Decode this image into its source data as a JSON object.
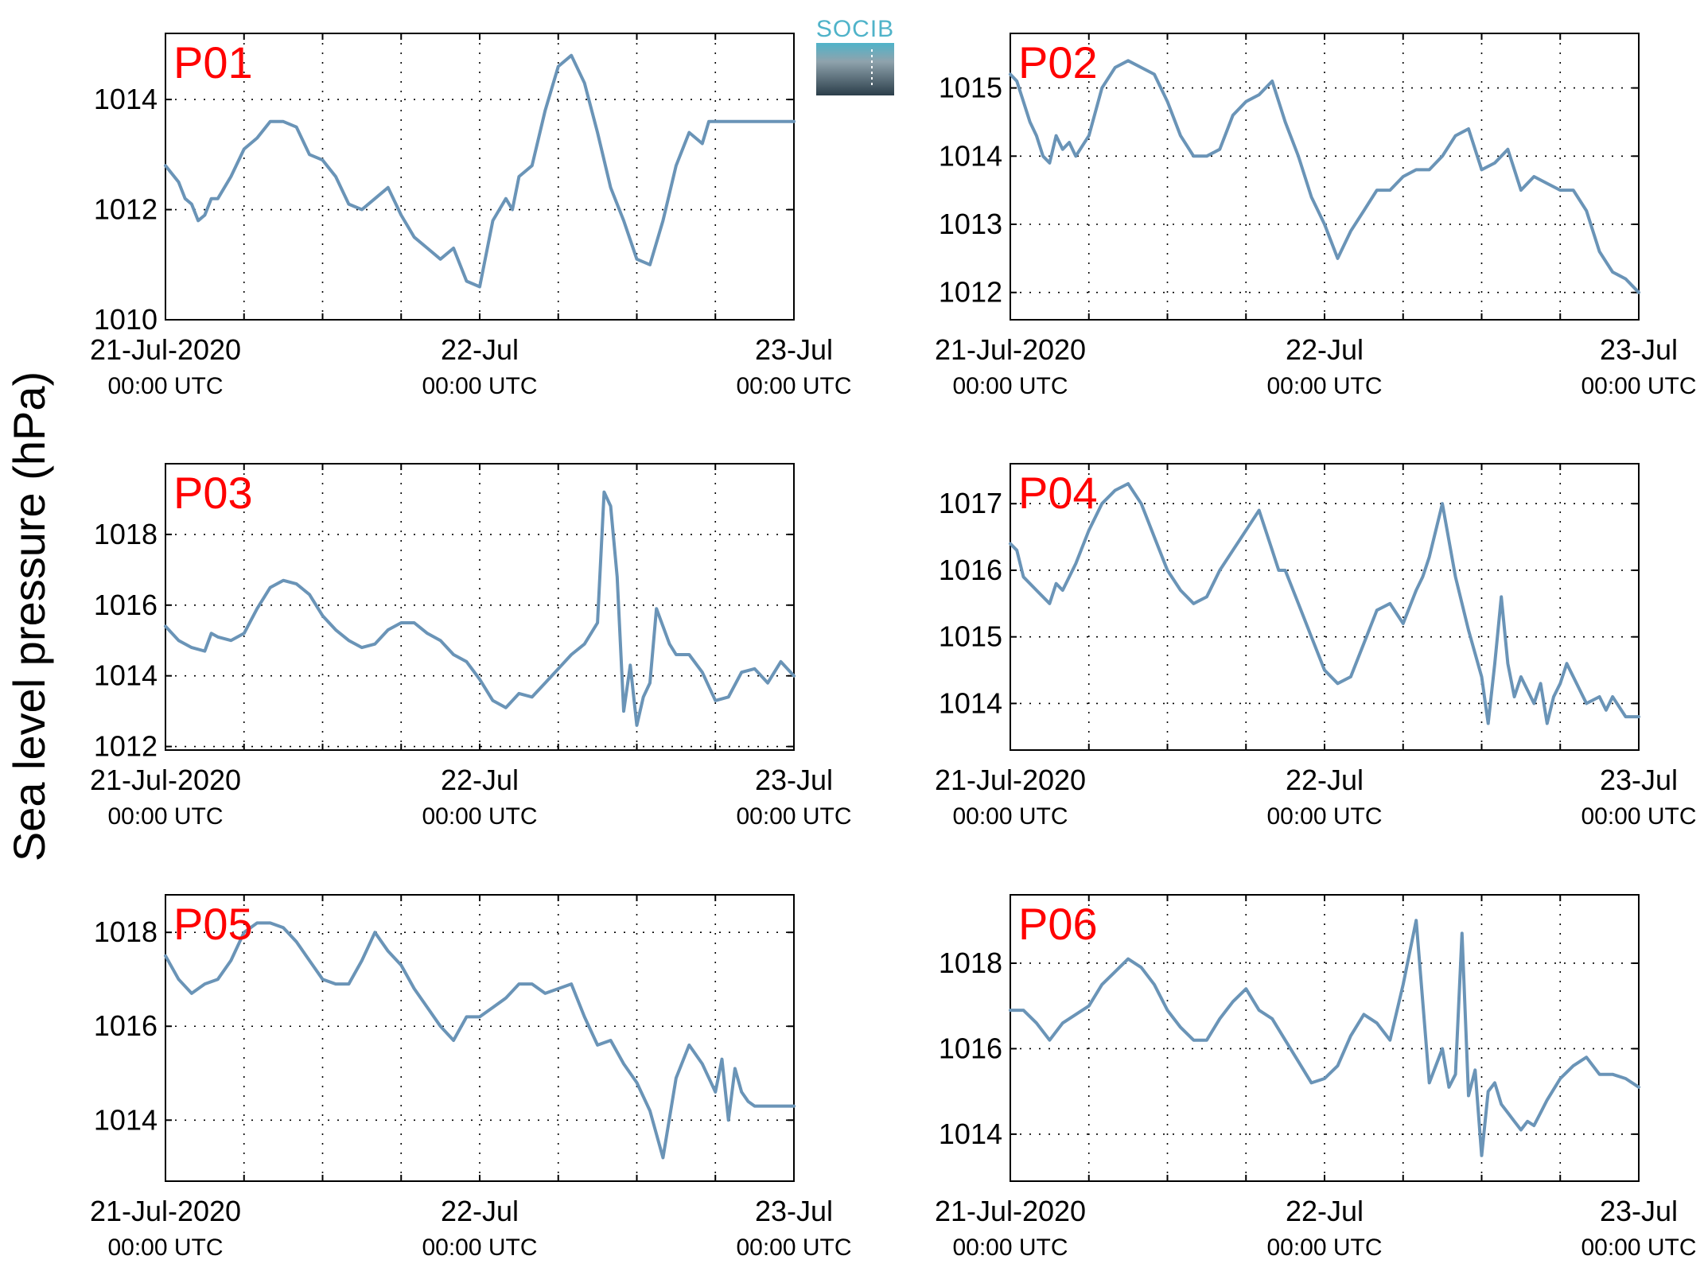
{
  "figure": {
    "ylabel": "Sea level pressure (hPa)",
    "logo_text": "SOCIB",
    "line_color": "#6a94b7",
    "label_color": "#ff0000"
  },
  "chart_data": [
    {
      "type": "line",
      "name": "P01",
      "ylim": [
        1010,
        1015.2
      ],
      "yticks": [
        1010,
        1012,
        1014
      ],
      "xlim": [
        0,
        48
      ],
      "grid": true,
      "xticks": [
        {
          "t": 0,
          "date": "21-Jul-2020",
          "time": "00:00 UTC"
        },
        {
          "t": 24,
          "date": "22-Jul",
          "time": "00:00 UTC"
        },
        {
          "t": 48,
          "date": "23-Jul",
          "time": "00:00 UTC"
        }
      ],
      "series": [
        {
          "x": [
            0,
            1,
            1.5,
            2,
            2.5,
            3,
            3.5,
            4,
            5,
            6,
            7,
            8,
            9,
            10,
            11,
            12,
            13,
            14,
            15,
            16,
            17,
            18,
            19,
            20,
            21,
            22,
            23,
            24,
            25,
            26,
            26.5,
            27,
            27.5,
            28,
            29,
            30,
            31,
            32,
            33,
            34,
            35,
            36,
            37,
            38,
            39,
            40,
            41,
            41.5,
            42,
            43,
            44,
            45,
            46,
            47,
            48
          ],
          "y": [
            1012.8,
            1012.5,
            1012.2,
            1012.1,
            1011.8,
            1011.9,
            1012.2,
            1012.2,
            1012.6,
            1013.1,
            1013.3,
            1013.6,
            1013.6,
            1013.5,
            1013.0,
            1012.9,
            1012.6,
            1012.1,
            1012.0,
            1012.2,
            1012.4,
            1011.9,
            1011.5,
            1011.3,
            1011.1,
            1011.3,
            1010.7,
            1010.6,
            1011.8,
            1012.2,
            1012.0,
            1012.6,
            1012.7,
            1012.8,
            1013.8,
            1014.6,
            1014.8,
            1014.3,
            1013.4,
            1012.4,
            1011.8,
            1011.1,
            1011.0,
            1011.8,
            1012.8,
            1013.4,
            1013.2,
            1013.6,
            1013.6,
            1013.6,
            1013.6,
            1013.6,
            1013.6,
            1013.6,
            1013.6
          ]
        }
      ]
    },
    {
      "type": "line",
      "name": "P02",
      "ylim": [
        1011.6,
        1015.8
      ],
      "yticks": [
        1012,
        1013,
        1014,
        1015
      ],
      "xlim": [
        0,
        48
      ],
      "grid": true,
      "xticks": [
        {
          "t": 0,
          "date": "21-Jul-2020",
          "time": "00:00 UTC"
        },
        {
          "t": 24,
          "date": "22-Jul",
          "time": "00:00 UTC"
        },
        {
          "t": 48,
          "date": "23-Jul",
          "time": "00:00 UTC"
        }
      ],
      "series": [
        {
          "x": [
            0,
            0.5,
            1,
            1.5,
            2,
            2.5,
            3,
            3.5,
            4,
            4.5,
            5,
            6,
            7,
            8,
            9,
            10,
            11,
            12,
            13,
            14,
            15,
            16,
            17,
            18,
            19,
            20,
            20.5,
            21,
            22,
            23,
            24,
            25,
            26,
            27,
            28,
            29,
            30,
            31,
            32,
            33,
            34,
            35,
            36,
            37,
            38,
            39,
            40,
            41,
            42,
            43,
            44,
            45,
            46,
            47,
            48
          ],
          "y": [
            1015.2,
            1015.1,
            1014.8,
            1014.5,
            1014.3,
            1014.0,
            1013.9,
            1014.3,
            1014.1,
            1014.2,
            1014.0,
            1014.3,
            1015.0,
            1015.3,
            1015.4,
            1015.3,
            1015.2,
            1014.8,
            1014.3,
            1014.0,
            1014.0,
            1014.1,
            1014.6,
            1014.8,
            1014.9,
            1015.1,
            1014.8,
            1014.5,
            1014.0,
            1013.4,
            1013.0,
            1012.5,
            1012.9,
            1013.2,
            1013.5,
            1013.5,
            1013.7,
            1013.8,
            1013.8,
            1014.0,
            1014.3,
            1014.4,
            1013.8,
            1013.9,
            1014.1,
            1013.5,
            1013.7,
            1013.6,
            1013.5,
            1013.5,
            1013.2,
            1012.6,
            1012.3,
            1012.2,
            1012.0
          ]
        }
      ]
    },
    {
      "type": "line",
      "name": "P03",
      "ylim": [
        1011.9,
        1020
      ],
      "yticks": [
        1012,
        1014,
        1016,
        1018
      ],
      "xlim": [
        0,
        48
      ],
      "grid": true,
      "xticks": [
        {
          "t": 0,
          "date": "21-Jul-2020",
          "time": "00:00 UTC"
        },
        {
          "t": 24,
          "date": "22-Jul",
          "time": "00:00 UTC"
        },
        {
          "t": 48,
          "date": "23-Jul",
          "time": "00:00 UTC"
        }
      ],
      "series": [
        {
          "x": [
            0,
            1,
            2,
            3,
            3.5,
            4,
            5,
            6,
            7,
            8,
            9,
            10,
            11,
            12,
            13,
            14,
            15,
            16,
            17,
            18,
            19,
            20,
            21,
            22,
            23,
            24,
            25,
            26,
            27,
            28,
            29,
            30,
            31,
            32,
            33,
            33.5,
            34,
            34.5,
            35,
            35.5,
            36,
            36.5,
            37,
            37.5,
            38,
            38.5,
            39,
            40,
            41,
            42,
            43,
            44,
            45,
            46,
            47,
            48
          ],
          "y": [
            1015.4,
            1015.0,
            1014.8,
            1014.7,
            1015.2,
            1015.1,
            1015.0,
            1015.2,
            1015.9,
            1016.5,
            1016.7,
            1016.6,
            1016.3,
            1015.7,
            1015.3,
            1015.0,
            1014.8,
            1014.9,
            1015.3,
            1015.5,
            1015.5,
            1015.2,
            1015.0,
            1014.6,
            1014.4,
            1013.9,
            1013.3,
            1013.1,
            1013.5,
            1013.4,
            1013.8,
            1014.2,
            1014.6,
            1014.9,
            1015.5,
            1019.2,
            1018.8,
            1016.8,
            1013.0,
            1014.3,
            1012.6,
            1013.4,
            1013.8,
            1015.9,
            1015.4,
            1014.9,
            1014.6,
            1014.6,
            1014.1,
            1013.3,
            1013.4,
            1014.1,
            1014.2,
            1013.8,
            1014.4,
            1014.0
          ]
        }
      ]
    },
    {
      "type": "line",
      "name": "P04",
      "ylim": [
        1013.3,
        1017.6
      ],
      "yticks": [
        1014,
        1015,
        1016,
        1017
      ],
      "xlim": [
        0,
        48
      ],
      "grid": true,
      "xticks": [
        {
          "t": 0,
          "date": "21-Jul-2020",
          "time": "00:00 UTC"
        },
        {
          "t": 24,
          "date": "22-Jul",
          "time": "00:00 UTC"
        },
        {
          "t": 48,
          "date": "23-Jul",
          "time": "00:00 UTC"
        }
      ],
      "series": [
        {
          "x": [
            0,
            0.5,
            1,
            2,
            3,
            3.5,
            4,
            5,
            6,
            7,
            8,
            9,
            10,
            11,
            12,
            13,
            14,
            15,
            16,
            17,
            18,
            19,
            20,
            20.5,
            21,
            22,
            23,
            24,
            25,
            26,
            27,
            28,
            29,
            30,
            31,
            31.5,
            32,
            33,
            34,
            35,
            36,
            36.5,
            37,
            37.5,
            38,
            38.5,
            39,
            40,
            40.5,
            41,
            41.5,
            42,
            42.5,
            43,
            44,
            45,
            45.5,
            46,
            47,
            47.5,
            48
          ],
          "y": [
            1016.4,
            1016.3,
            1015.9,
            1015.7,
            1015.5,
            1015.8,
            1015.7,
            1016.1,
            1016.6,
            1017.0,
            1017.2,
            1017.3,
            1017.0,
            1016.5,
            1016.0,
            1015.7,
            1015.5,
            1015.6,
            1016.0,
            1016.3,
            1016.6,
            1016.9,
            1016.3,
            1016.0,
            1016.0,
            1015.5,
            1015.0,
            1014.5,
            1014.3,
            1014.4,
            1014.9,
            1015.4,
            1015.5,
            1015.2,
            1015.7,
            1015.9,
            1016.2,
            1017.0,
            1015.9,
            1015.1,
            1014.4,
            1013.7,
            1014.6,
            1015.6,
            1014.6,
            1014.1,
            1014.4,
            1014.0,
            1014.3,
            1013.7,
            1014.1,
            1014.3,
            1014.6,
            1014.4,
            1014.0,
            1014.1,
            1013.9,
            1014.1,
            1013.8,
            1013.8,
            1013.8
          ]
        }
      ]
    },
    {
      "type": "line",
      "name": "P05",
      "ylim": [
        1012.7,
        1018.8
      ],
      "yticks": [
        1014,
        1016,
        1018
      ],
      "xlim": [
        0,
        48
      ],
      "grid": true,
      "xticks": [
        {
          "t": 0,
          "date": "21-Jul-2020",
          "time": "00:00 UTC"
        },
        {
          "t": 24,
          "date": "22-Jul",
          "time": "00:00 UTC"
        },
        {
          "t": 48,
          "date": "23-Jul",
          "time": "00:00 UTC"
        }
      ],
      "series": [
        {
          "x": [
            0,
            1,
            2,
            3,
            4,
            5,
            6,
            7,
            8,
            9,
            10,
            11,
            12,
            13,
            14,
            15,
            16,
            17,
            18,
            19,
            20,
            21,
            22,
            23,
            24,
            25,
            26,
            27,
            28,
            29,
            30,
            31,
            32,
            33,
            34,
            35,
            36,
            37,
            38,
            39,
            40,
            41,
            42,
            42.5,
            43,
            43.5,
            44,
            44.5,
            45,
            45.5,
            46,
            46.5,
            47,
            47.5,
            48
          ],
          "y": [
            1017.5,
            1017.0,
            1016.7,
            1016.9,
            1017.0,
            1017.4,
            1018.0,
            1018.2,
            1018.2,
            1018.1,
            1017.8,
            1017.4,
            1017.0,
            1016.9,
            1016.9,
            1017.4,
            1018.0,
            1017.6,
            1017.3,
            1016.8,
            1016.4,
            1016.0,
            1015.7,
            1016.2,
            1016.2,
            1016.4,
            1016.6,
            1016.9,
            1016.9,
            1016.7,
            1016.8,
            1016.9,
            1016.2,
            1015.6,
            1015.7,
            1015.2,
            1014.8,
            1014.2,
            1013.2,
            1014.9,
            1015.6,
            1015.2,
            1014.6,
            1015.3,
            1014.0,
            1015.1,
            1014.6,
            1014.4,
            1014.3,
            1014.3,
            1014.3,
            1014.3,
            1014.3,
            1014.3,
            1014.3
          ]
        }
      ]
    },
    {
      "type": "line",
      "name": "P06",
      "ylim": [
        1012.9,
        1019.6
      ],
      "yticks": [
        1014,
        1016,
        1018
      ],
      "xlim": [
        0,
        48
      ],
      "grid": true,
      "xticks": [
        {
          "t": 0,
          "date": "21-Jul-2020",
          "time": "00:00 UTC"
        },
        {
          "t": 24,
          "date": "22-Jul",
          "time": "00:00 UTC"
        },
        {
          "t": 48,
          "date": "23-Jul",
          "time": "00:00 UTC"
        }
      ],
      "series": [
        {
          "x": [
            0,
            1,
            2,
            3,
            4,
            5,
            6,
            7,
            8,
            9,
            10,
            11,
            12,
            13,
            14,
            15,
            16,
            17,
            18,
            19,
            20,
            21,
            22,
            23,
            24,
            25,
            26,
            27,
            28,
            29,
            30,
            31,
            32,
            33,
            33.5,
            34,
            34.5,
            35,
            35.5,
            36,
            36.5,
            37,
            37.5,
            38,
            38.5,
            39,
            39.5,
            40,
            40.5,
            41,
            42,
            43,
            44,
            45,
            46,
            47,
            48
          ],
          "y": [
            1016.9,
            1016.9,
            1016.6,
            1016.2,
            1016.6,
            1016.8,
            1017.0,
            1017.5,
            1017.8,
            1018.1,
            1017.9,
            1017.5,
            1016.9,
            1016.5,
            1016.2,
            1016.2,
            1016.7,
            1017.1,
            1017.4,
            1016.9,
            1016.7,
            1016.2,
            1015.7,
            1015.2,
            1015.3,
            1015.6,
            1016.3,
            1016.8,
            1016.6,
            1016.2,
            1017.5,
            1019.0,
            1015.2,
            1016.0,
            1015.1,
            1015.4,
            1018.7,
            1014.9,
            1015.5,
            1013.5,
            1015.0,
            1015.2,
            1014.7,
            1014.5,
            1014.3,
            1014.1,
            1014.3,
            1014.2,
            1014.5,
            1014.8,
            1015.3,
            1015.6,
            1015.8,
            1015.4,
            1015.4,
            1015.3,
            1015.1
          ]
        }
      ]
    }
  ]
}
